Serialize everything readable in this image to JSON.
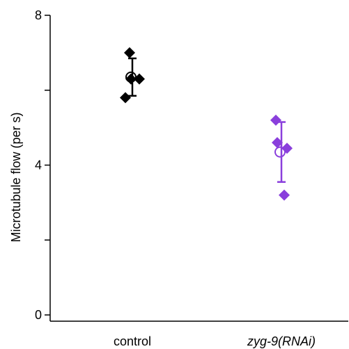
{
  "chart_data": {
    "type": "scatter",
    "ylabel": "Microtubule flow (per s)",
    "xlabel": "",
    "ylim": [
      0,
      8
    ],
    "yticks": [
      0,
      2,
      4,
      6,
      8
    ],
    "ytick_labels": [
      "0",
      "",
      "4",
      "",
      "8"
    ],
    "categories": [
      "control",
      "zyg-9(RNAi)"
    ],
    "category_styles": [
      "normal",
      "italic"
    ],
    "grid": false,
    "legend": "none",
    "groups": [
      {
        "category": "control",
        "color": "#000000",
        "points": [
          {
            "x_offset": -0.04,
            "y": 7.0
          },
          {
            "x_offset": -0.02,
            "y": 6.3
          },
          {
            "x_offset": 0.1,
            "y": 6.3
          },
          {
            "x_offset": -0.1,
            "y": 5.8
          }
        ],
        "mean": 6.35,
        "error_low": 5.85,
        "error_high": 6.85
      },
      {
        "category": "zyg-9(RNAi)",
        "color": "#8a3fdc",
        "points": [
          {
            "x_offset": -0.08,
            "y": 5.2
          },
          {
            "x_offset": -0.06,
            "y": 4.6
          },
          {
            "x_offset": 0.08,
            "y": 4.45
          },
          {
            "x_offset": 0.04,
            "y": 3.2
          }
        ],
        "mean": 4.35,
        "error_low": 3.55,
        "error_high": 5.15
      }
    ]
  }
}
